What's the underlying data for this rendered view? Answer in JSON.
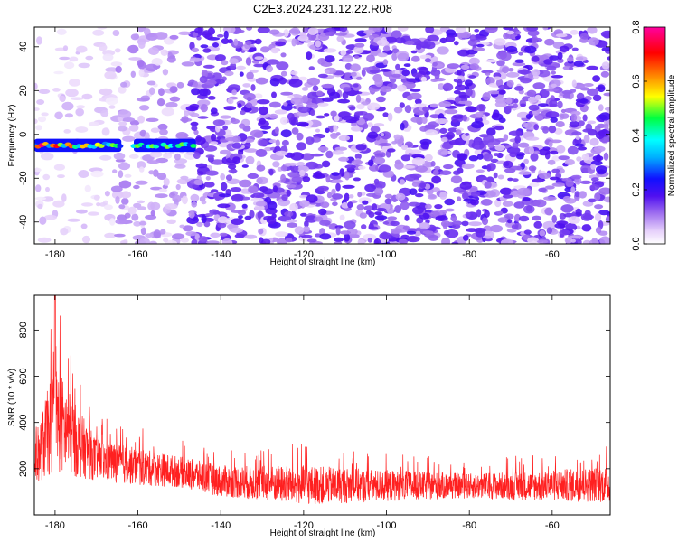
{
  "title": "C2E3.2024.231.12.22.R08",
  "chart_data": [
    {
      "type": "heatmap",
      "xlabel": "Height of straight line (km)",
      "ylabel": "Frequency (Hz)",
      "xlim": [
        -185,
        -46
      ],
      "ylim": [
        -50,
        49
      ],
      "x_ticks": [
        -180,
        -160,
        -140,
        -120,
        -100,
        -80,
        -60
      ],
      "y_ticks": [
        -40,
        -20,
        0,
        20,
        40
      ],
      "colorbar": {
        "label": "Normalized spectral amplitude",
        "range": [
          0,
          0.8
        ],
        "ticks": [
          "0.0",
          "0.2",
          "0.4",
          "0.6",
          "0.8"
        ],
        "colormap": [
          "#ffffff",
          "#e0c8f8",
          "#a070f0",
          "#7010f0",
          "#1010ff",
          "#00ffff",
          "#00ff40",
          "#ffff00",
          "#ff8000",
          "#ff0000",
          "#ff00a0"
        ]
      },
      "signal_band": {
        "frequency_hz": -5,
        "segments": [
          {
            "x_start": -185,
            "x_end": -164,
            "peak_amplitude": 0.8
          },
          {
            "x_start": -161,
            "x_end": -146,
            "peak_amplitude": 0.5
          }
        ]
      },
      "noise_onset_km": -147
    },
    {
      "type": "line",
      "xlabel": "Height of straight line (km)",
      "ylabel": "SNR (10 * v/v)",
      "xlim": [
        -185,
        -46
      ],
      "ylim": [
        0,
        950
      ],
      "x_ticks": [
        -180,
        -160,
        -140,
        -120,
        -100,
        -80,
        -60
      ],
      "y_ticks": [
        200,
        400,
        600,
        800
      ],
      "line_color": "#ff2020",
      "peak": {
        "x": -180,
        "y": 950
      },
      "envelope": [
        {
          "x": -184,
          "mean": 250,
          "max": 520
        },
        {
          "x": -180,
          "mean": 400,
          "max": 950
        },
        {
          "x": -176,
          "mean": 320,
          "max": 700
        },
        {
          "x": -170,
          "mean": 230,
          "max": 430
        },
        {
          "x": -160,
          "mean": 200,
          "max": 380
        },
        {
          "x": -150,
          "mean": 180,
          "max": 330
        },
        {
          "x": -140,
          "mean": 140,
          "max": 290
        },
        {
          "x": -120,
          "mean": 120,
          "max": 310
        },
        {
          "x": -100,
          "mean": 120,
          "max": 270
        },
        {
          "x": -80,
          "mean": 120,
          "max": 240
        },
        {
          "x": -60,
          "mean": 120,
          "max": 270
        },
        {
          "x": -46,
          "mean": 125,
          "max": 300
        }
      ]
    }
  ]
}
